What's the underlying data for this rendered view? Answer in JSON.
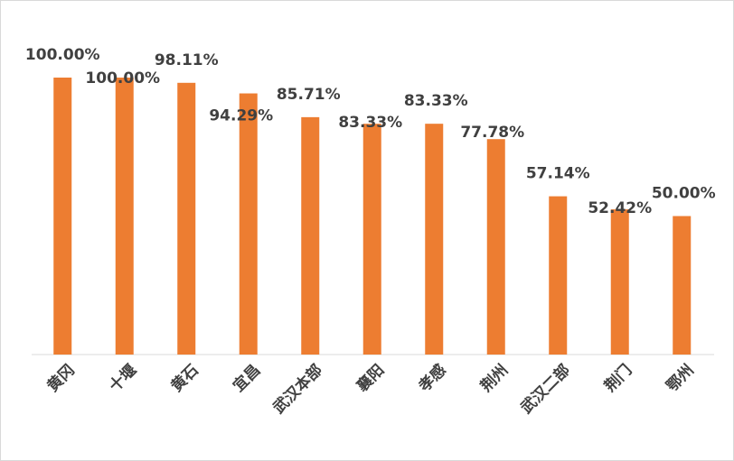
{
  "chart_data": {
    "type": "bar",
    "title": "",
    "xlabel": "",
    "ylabel": "",
    "ylim": [
      0,
      1
    ],
    "grid": false,
    "legend": "none",
    "bar_color": "#ED7D31",
    "categories": [
      "黄冈",
      "十堰",
      "黄石",
      "宜昌",
      "武汉本部",
      "襄阳",
      "孝感",
      "荆州",
      "武汉二部",
      "荆门",
      "鄂州"
    ],
    "values": [
      1.0,
      1.0,
      0.9811,
      0.9429,
      0.8571,
      0.8333,
      0.8333,
      0.7778,
      0.5714,
      0.5242,
      0.5
    ],
    "data_labels": [
      "100.00%",
      "100.00%",
      "98.11%",
      "94.29%",
      "85.71%",
      "83.33%",
      "83.33%",
      "77.78%",
      "57.14%",
      "52.42%",
      "50.00%"
    ]
  }
}
